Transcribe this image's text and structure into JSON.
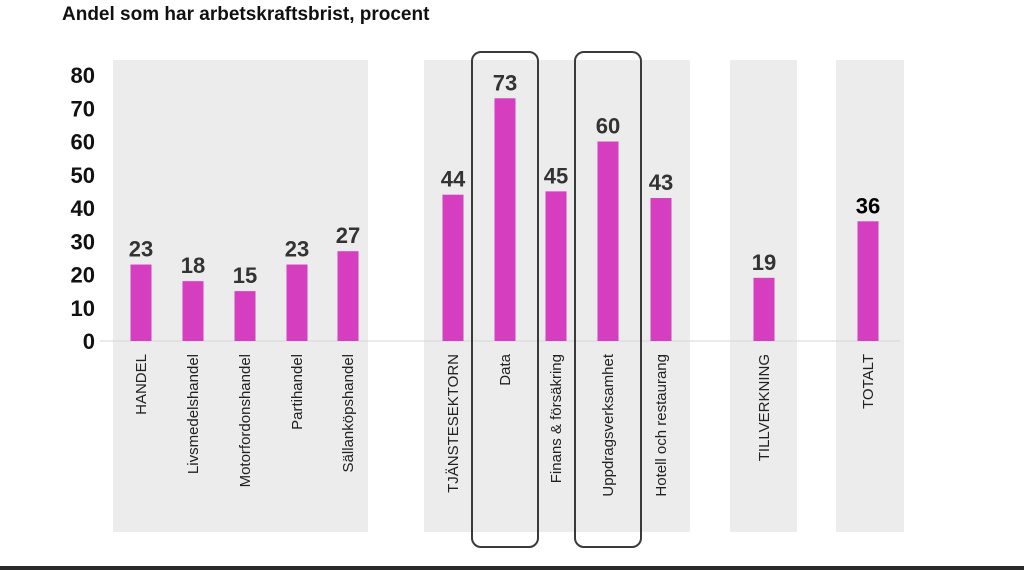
{
  "chart_data": {
    "type": "bar",
    "title": "Andel som har arbetskraftsbrist, procent",
    "xlabel": "",
    "ylabel": "",
    "ylim": [
      0,
      80
    ],
    "yticks": [
      0,
      10,
      20,
      30,
      40,
      50,
      60,
      70,
      80
    ],
    "bar_color": "#d63ec0",
    "panel_color": "#ececec",
    "groups": [
      {
        "name": "HANDEL",
        "categories": [
          "HANDEL",
          "Livsmedelshandel",
          "Motorfordonshandel",
          "Partihandel",
          "Sällanköpshandel"
        ],
        "values": [
          23,
          18,
          15,
          23,
          27
        ]
      },
      {
        "name": "TJÄNSTESEKTORN",
        "categories": [
          "TJÄNSTESEKTORN",
          "Data",
          "Finans & försäkring",
          "Uppdragsverksamhet",
          "Hotell och restaurang"
        ],
        "values": [
          44,
          73,
          45,
          60,
          43
        ],
        "highlighted": [
          "Data",
          "Uppdragsverksamhet"
        ]
      },
      {
        "name": "TILLVERKNING",
        "categories": [
          "TILLVERKNING"
        ],
        "values": [
          19
        ]
      },
      {
        "name": "TOTALT",
        "categories": [
          "TOTALT"
        ],
        "values": [
          36
        ]
      }
    ]
  }
}
